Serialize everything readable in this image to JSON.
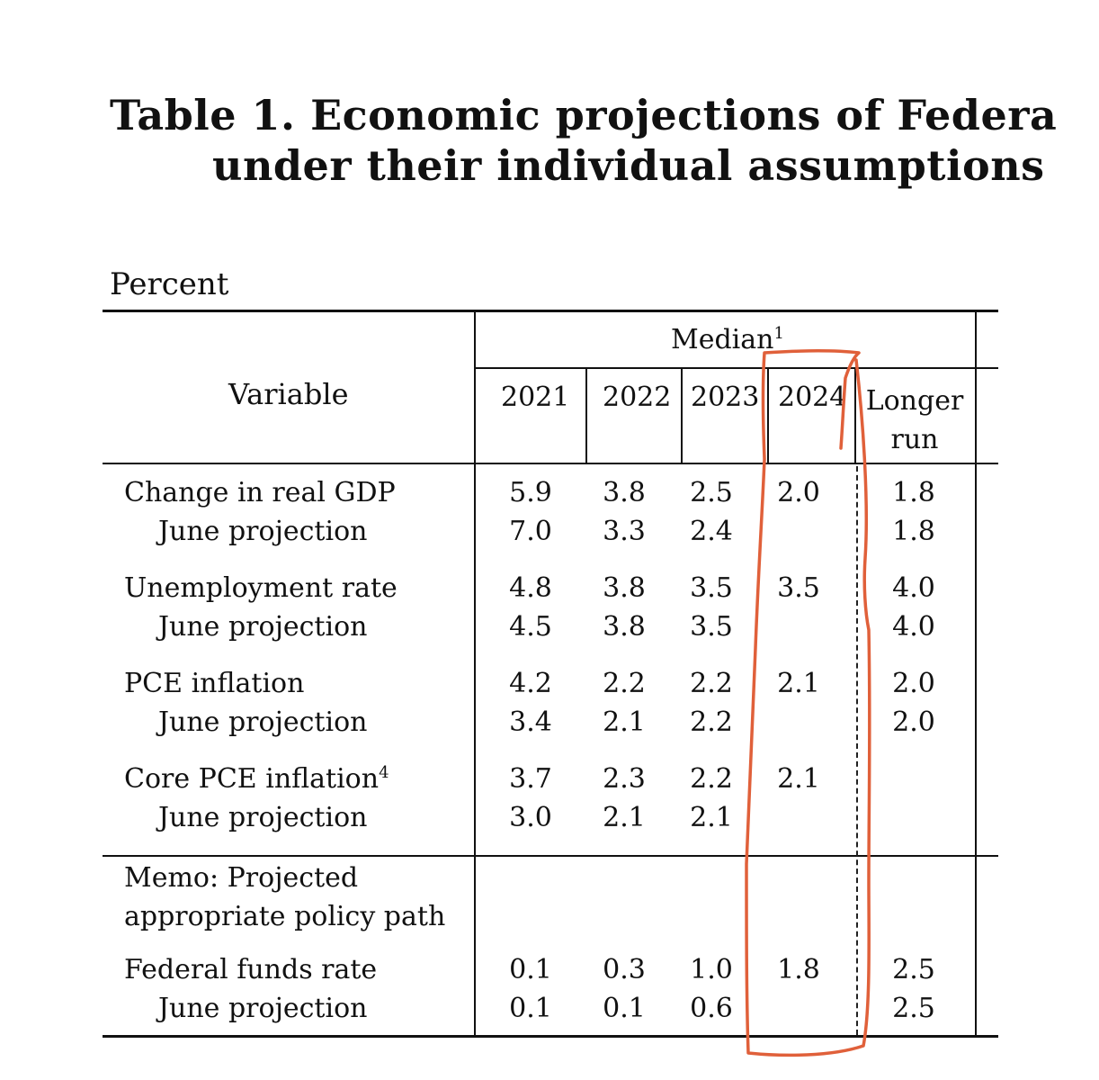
{
  "title": {
    "line1": "Table 1.  Economic projections of Federa",
    "line2": "under their individual assumptions"
  },
  "unit_label": "Percent",
  "header": {
    "variable": "Variable",
    "median": "Median",
    "median_note": "1",
    "years": [
      "2021",
      "2022",
      "2023",
      "2024"
    ],
    "longer_run_line1": "Longer",
    "longer_run_line2": "run"
  },
  "rows": [
    {
      "label": "Change in real GDP",
      "note": "",
      "values": [
        "5.9",
        "3.8",
        "2.5",
        "2.0",
        "1.8"
      ]
    },
    {
      "label": "June projection",
      "note": "",
      "values": [
        "7.0",
        "3.3",
        "2.4",
        "",
        "1.8"
      ]
    },
    {
      "label": "Unemployment rate",
      "note": "",
      "values": [
        "4.8",
        "3.8",
        "3.5",
        "3.5",
        "4.0"
      ]
    },
    {
      "label": "June projection",
      "note": "",
      "values": [
        "4.5",
        "3.8",
        "3.5",
        "",
        "4.0"
      ]
    },
    {
      "label": "PCE inflation",
      "note": "",
      "values": [
        "4.2",
        "2.2",
        "2.2",
        "2.1",
        "2.0"
      ]
    },
    {
      "label": "June projection",
      "note": "",
      "values": [
        "3.4",
        "2.1",
        "2.2",
        "",
        "2.0"
      ]
    },
    {
      "label": "Core PCE inflation",
      "note": "4",
      "values": [
        "3.7",
        "2.3",
        "2.2",
        "2.1",
        ""
      ]
    },
    {
      "label": "June projection",
      "note": "",
      "values": [
        "3.0",
        "2.1",
        "2.1",
        "",
        ""
      ]
    }
  ],
  "memo": {
    "line1": "Memo: Projected",
    "line2": "appropriate policy path"
  },
  "policy_rows": [
    {
      "label": "Federal funds rate",
      "values": [
        "0.1",
        "0.3",
        "1.0",
        "1.8",
        "2.5"
      ]
    },
    {
      "label": "June projection",
      "values": [
        "0.1",
        "0.1",
        "0.6",
        "",
        "2.5"
      ]
    }
  ],
  "colors": {
    "ink": "#111111",
    "annotation": "#e0603a"
  }
}
